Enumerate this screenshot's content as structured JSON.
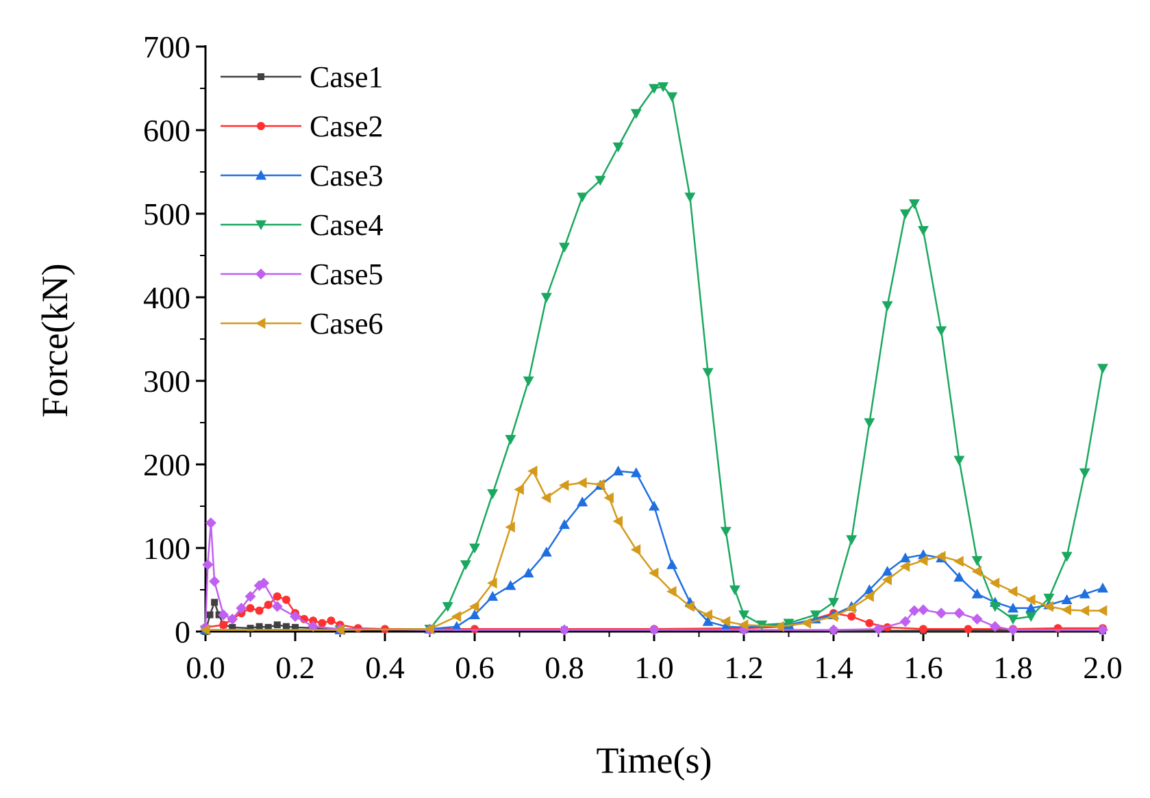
{
  "chart_data": {
    "type": "line",
    "title": "",
    "xlabel": "Time(s)",
    "ylabel": "Force(kN)",
    "xlim": [
      0,
      2.0
    ],
    "ylim": [
      0,
      700
    ],
    "xticks": [
      "0.0",
      "0.2",
      "0.4",
      "0.6",
      "0.8",
      "1.0",
      "1.2",
      "1.4",
      "1.6",
      "1.8",
      "2.0"
    ],
    "yticks": [
      "0",
      "100",
      "200",
      "300",
      "400",
      "500",
      "600",
      "700"
    ],
    "legend_position": "top-left",
    "grid": false,
    "series": [
      {
        "name": "Case1",
        "color": "#404040",
        "marker": "square",
        "points": [
          [
            0,
            0
          ],
          [
            0.01,
            20
          ],
          [
            0.02,
            35
          ],
          [
            0.03,
            20
          ],
          [
            0.04,
            8
          ],
          [
            0.06,
            5
          ],
          [
            0.1,
            4
          ],
          [
            0.12,
            6
          ],
          [
            0.14,
            5
          ],
          [
            0.16,
            8
          ],
          [
            0.18,
            6
          ],
          [
            0.2,
            5
          ],
          [
            0.3,
            3
          ],
          [
            0.5,
            2
          ],
          [
            0.8,
            2
          ],
          [
            1.0,
            2
          ],
          [
            1.2,
            2
          ],
          [
            1.4,
            1
          ],
          [
            1.6,
            1
          ],
          [
            2.0,
            1
          ]
        ]
      },
      {
        "name": "Case2",
        "color": "#ff3030",
        "marker": "circle",
        "points": [
          [
            0,
            5
          ],
          [
            0.04,
            8
          ],
          [
            0.06,
            15
          ],
          [
            0.08,
            22
          ],
          [
            0.1,
            28
          ],
          [
            0.12,
            25
          ],
          [
            0.14,
            32
          ],
          [
            0.16,
            42
          ],
          [
            0.18,
            38
          ],
          [
            0.2,
            22
          ],
          [
            0.22,
            15
          ],
          [
            0.24,
            13
          ],
          [
            0.26,
            10
          ],
          [
            0.28,
            13
          ],
          [
            0.3,
            8
          ],
          [
            0.34,
            4
          ],
          [
            0.4,
            3
          ],
          [
            0.6,
            3
          ],
          [
            1.0,
            3
          ],
          [
            1.2,
            4
          ],
          [
            1.3,
            6
          ],
          [
            1.4,
            22
          ],
          [
            1.44,
            18
          ],
          [
            1.48,
            10
          ],
          [
            1.52,
            5
          ],
          [
            1.6,
            3
          ],
          [
            1.7,
            3
          ],
          [
            1.8,
            3
          ],
          [
            1.9,
            4
          ],
          [
            2.0,
            4
          ]
        ]
      },
      {
        "name": "Case3",
        "color": "#1f6fe0",
        "marker": "triangle-up",
        "points": [
          [
            0,
            2
          ],
          [
            0.3,
            2
          ],
          [
            0.5,
            3
          ],
          [
            0.56,
            6
          ],
          [
            0.6,
            20
          ],
          [
            0.64,
            42
          ],
          [
            0.68,
            55
          ],
          [
            0.72,
            70
          ],
          [
            0.76,
            95
          ],
          [
            0.8,
            128
          ],
          [
            0.84,
            155
          ],
          [
            0.88,
            175
          ],
          [
            0.92,
            192
          ],
          [
            0.96,
            190
          ],
          [
            1.0,
            150
          ],
          [
            1.04,
            80
          ],
          [
            1.08,
            35
          ],
          [
            1.12,
            12
          ],
          [
            1.16,
            6
          ],
          [
            1.2,
            5
          ],
          [
            1.3,
            8
          ],
          [
            1.36,
            15
          ],
          [
            1.4,
            20
          ],
          [
            1.44,
            30
          ],
          [
            1.48,
            50
          ],
          [
            1.52,
            72
          ],
          [
            1.56,
            88
          ],
          [
            1.6,
            92
          ],
          [
            1.64,
            88
          ],
          [
            1.68,
            65
          ],
          [
            1.72,
            45
          ],
          [
            1.76,
            35
          ],
          [
            1.8,
            28
          ],
          [
            1.84,
            28
          ],
          [
            1.88,
            32
          ],
          [
            1.92,
            38
          ],
          [
            1.96,
            45
          ],
          [
            2.0,
            52
          ]
        ]
      },
      {
        "name": "Case4",
        "color": "#1aa860",
        "marker": "triangle-down",
        "points": [
          [
            0,
            2
          ],
          [
            0.3,
            2
          ],
          [
            0.5,
            3
          ],
          [
            0.54,
            30
          ],
          [
            0.58,
            80
          ],
          [
            0.6,
            100
          ],
          [
            0.64,
            165
          ],
          [
            0.68,
            230
          ],
          [
            0.72,
            300
          ],
          [
            0.76,
            400
          ],
          [
            0.8,
            460
          ],
          [
            0.84,
            520
          ],
          [
            0.88,
            540
          ],
          [
            0.92,
            580
          ],
          [
            0.96,
            620
          ],
          [
            1.0,
            650
          ],
          [
            1.02,
            652
          ],
          [
            1.04,
            640
          ],
          [
            1.08,
            520
          ],
          [
            1.12,
            310
          ],
          [
            1.16,
            120
          ],
          [
            1.18,
            50
          ],
          [
            1.2,
            20
          ],
          [
            1.24,
            8
          ],
          [
            1.3,
            10
          ],
          [
            1.36,
            20
          ],
          [
            1.4,
            35
          ],
          [
            1.44,
            110
          ],
          [
            1.48,
            250
          ],
          [
            1.52,
            390
          ],
          [
            1.56,
            500
          ],
          [
            1.58,
            512
          ],
          [
            1.6,
            480
          ],
          [
            1.64,
            360
          ],
          [
            1.68,
            205
          ],
          [
            1.72,
            85
          ],
          [
            1.76,
            30
          ],
          [
            1.8,
            15
          ],
          [
            1.84,
            18
          ],
          [
            1.88,
            40
          ],
          [
            1.92,
            90
          ],
          [
            1.96,
            190
          ],
          [
            2.0,
            315
          ]
        ]
      },
      {
        "name": "Case5",
        "color": "#c060f0",
        "marker": "diamond",
        "points": [
          [
            0,
            5
          ],
          [
            0.005,
            80
          ],
          [
            0.012,
            130
          ],
          [
            0.02,
            60
          ],
          [
            0.04,
            20
          ],
          [
            0.06,
            15
          ],
          [
            0.08,
            28
          ],
          [
            0.1,
            42
          ],
          [
            0.12,
            55
          ],
          [
            0.13,
            58
          ],
          [
            0.16,
            30
          ],
          [
            0.2,
            18
          ],
          [
            0.24,
            6
          ],
          [
            0.3,
            3
          ],
          [
            0.5,
            2
          ],
          [
            0.8,
            2
          ],
          [
            1.0,
            2
          ],
          [
            1.2,
            2
          ],
          [
            1.4,
            2
          ],
          [
            1.5,
            3
          ],
          [
            1.56,
            12
          ],
          [
            1.58,
            25
          ],
          [
            1.6,
            26
          ],
          [
            1.64,
            22
          ],
          [
            1.68,
            22
          ],
          [
            1.72,
            15
          ],
          [
            1.76,
            6
          ],
          [
            1.8,
            2
          ],
          [
            2.0,
            2
          ]
        ]
      },
      {
        "name": "Case6",
        "color": "#d49a1a",
        "marker": "triangle-left",
        "points": [
          [
            0,
            2
          ],
          [
            0.3,
            2
          ],
          [
            0.5,
            3
          ],
          [
            0.56,
            18
          ],
          [
            0.6,
            30
          ],
          [
            0.64,
            58
          ],
          [
            0.68,
            125
          ],
          [
            0.7,
            170
          ],
          [
            0.73,
            192
          ],
          [
            0.76,
            160
          ],
          [
            0.8,
            175
          ],
          [
            0.84,
            178
          ],
          [
            0.88,
            176
          ],
          [
            0.9,
            160
          ],
          [
            0.92,
            132
          ],
          [
            0.96,
            98
          ],
          [
            1.0,
            70
          ],
          [
            1.04,
            48
          ],
          [
            1.08,
            30
          ],
          [
            1.12,
            20
          ],
          [
            1.16,
            12
          ],
          [
            1.2,
            8
          ],
          [
            1.28,
            6
          ],
          [
            1.34,
            10
          ],
          [
            1.4,
            18
          ],
          [
            1.44,
            28
          ],
          [
            1.48,
            42
          ],
          [
            1.52,
            62
          ],
          [
            1.56,
            78
          ],
          [
            1.6,
            85
          ],
          [
            1.64,
            90
          ],
          [
            1.68,
            84
          ],
          [
            1.72,
            72
          ],
          [
            1.76,
            58
          ],
          [
            1.8,
            48
          ],
          [
            1.84,
            38
          ],
          [
            1.88,
            30
          ],
          [
            1.92,
            26
          ],
          [
            1.96,
            25
          ],
          [
            2.0,
            25
          ]
        ]
      }
    ]
  }
}
